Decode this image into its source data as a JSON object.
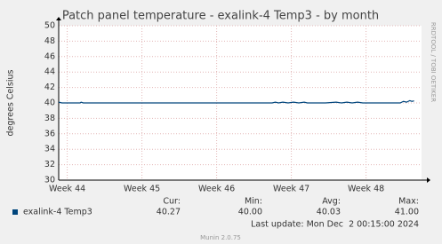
{
  "chart_data": {
    "type": "line",
    "title": "Patch panel temperature - exalink-4 Temp3 - by month",
    "y_label": "degrees Celsius",
    "side_text": "RRDTOOL / TOBI OETIKER",
    "xlim": [
      0,
      34
    ],
    "xticks": [
      {
        "value": 0.8,
        "label": "Week 44"
      },
      {
        "value": 7.8,
        "label": "Week 45"
      },
      {
        "value": 14.8,
        "label": "Week 46"
      },
      {
        "value": 21.8,
        "label": "Week 47"
      },
      {
        "value": 28.8,
        "label": "Week 48"
      }
    ],
    "ylim": [
      30,
      50
    ],
    "yticks": [
      30,
      32,
      34,
      36,
      38,
      40,
      42,
      44,
      46,
      48,
      50
    ],
    "grid": true,
    "x": [
      0,
      0.3,
      1,
      2,
      2.1,
      2.3,
      5,
      10,
      15,
      20,
      20.3,
      20.6,
      21,
      21.5,
      22,
      22.5,
      23,
      23.3,
      25,
      26,
      26.5,
      27,
      27.5,
      28,
      28.5,
      30,
      32,
      32.3,
      32.6,
      32.9,
      33.1,
      33.3
    ],
    "series": [
      {
        "name": "exalink-4 Temp3",
        "color": "#00457c",
        "values": [
          40.1,
          40.0,
          40.0,
          40.0,
          40.1,
          40.0,
          40.0,
          40.0,
          40.0,
          40.0,
          40.1,
          40.0,
          40.1,
          40.0,
          40.1,
          40.0,
          40.1,
          40.0,
          40.0,
          40.1,
          40.0,
          40.1,
          40.0,
          40.1,
          40.0,
          40.0,
          40.0,
          40.2,
          40.1,
          40.3,
          40.2,
          40.27
        ]
      }
    ],
    "summary": {
      "headers": [
        "Cur:",
        "Min:",
        "Avg:",
        "Max:"
      ],
      "values": [
        "40.27",
        "40.00",
        "40.03",
        "41.00"
      ]
    },
    "last_update": "Last update: Mon Dec  2 00:15:00 2024",
    "footer": "Munin 2.0.75"
  }
}
